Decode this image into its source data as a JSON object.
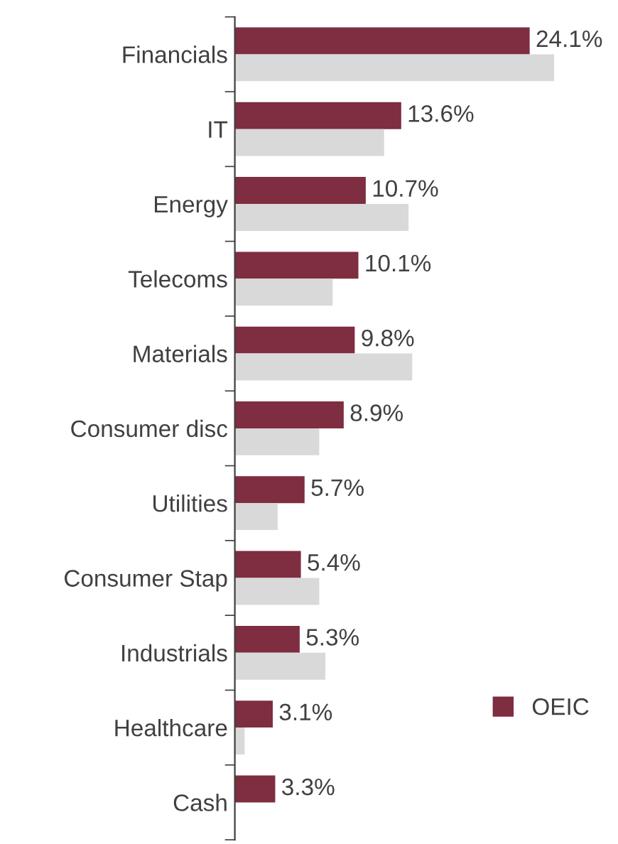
{
  "chart_data": {
    "type": "bar",
    "orientation": "horizontal",
    "categories": [
      "Financials",
      "IT",
      "Energy",
      "Telecoms",
      "Materials",
      "Consumer disc",
      "Utilities",
      "Consumer Stap",
      "Industrials",
      "Healthcare",
      "Cash"
    ],
    "series": [
      {
        "name": "OEIC",
        "color": "#7f2d40",
        "values": [
          24.1,
          13.6,
          10.7,
          10.1,
          9.8,
          8.9,
          5.7,
          5.4,
          5.3,
          3.1,
          3.3
        ],
        "value_labels": [
          "24.1%",
          "13.6%",
          "10.7%",
          "10.1%",
          "9.8%",
          "8.9%",
          "5.7%",
          "5.4%",
          "5.3%",
          "3.1%",
          "3.3%"
        ]
      },
      {
        "color": "#d9d9d9",
        "values": [
          26.1,
          12.2,
          14.2,
          8.0,
          14.5,
          6.9,
          3.5,
          6.9,
          7.4,
          0.8,
          null
        ]
      }
    ],
    "legend": "bottom right"
  }
}
